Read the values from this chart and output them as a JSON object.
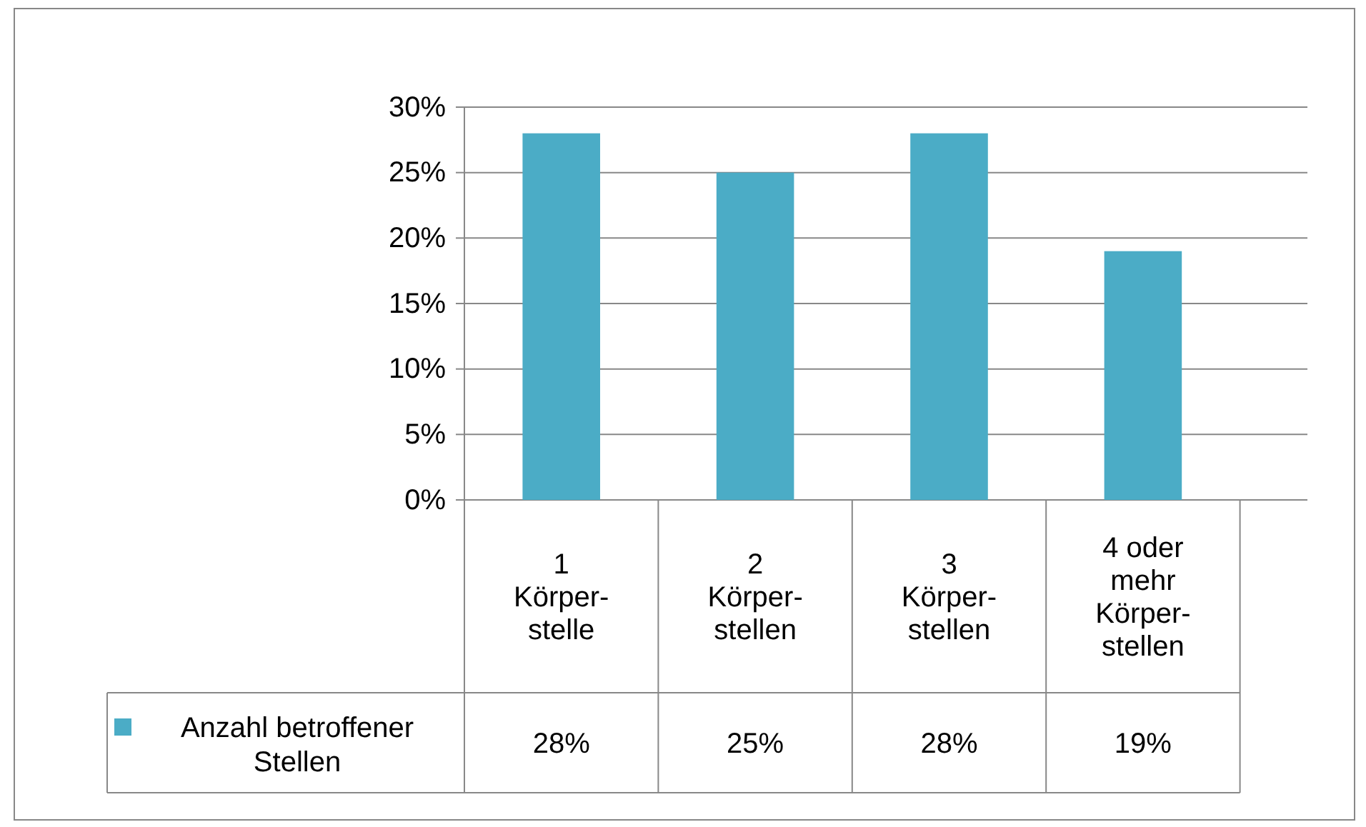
{
  "chart_data": {
    "type": "bar",
    "categories": [
      "1 Körper-stelle",
      "2 Körper-stellen",
      "3 Körper-stellen",
      "4 oder mehr Körper-stellen"
    ],
    "series": [
      {
        "name": "Anzahl betroffener Stellen",
        "color": "#4bacc6",
        "values": [
          28,
          25,
          28,
          19
        ],
        "value_labels": [
          "28%",
          "25%",
          "28%",
          "19%"
        ]
      }
    ],
    "ylim": [
      0,
      30
    ],
    "yticks": [
      {
        "value": 0,
        "label": "0%"
      },
      {
        "value": 5,
        "label": "5%"
      },
      {
        "value": 10,
        "label": "10%"
      },
      {
        "value": 15,
        "label": "15%"
      },
      {
        "value": 20,
        "label": "20%"
      },
      {
        "value": 25,
        "label": "25%"
      },
      {
        "value": 30,
        "label": "30%"
      }
    ],
    "grid": "y",
    "legend": "bottom left"
  }
}
